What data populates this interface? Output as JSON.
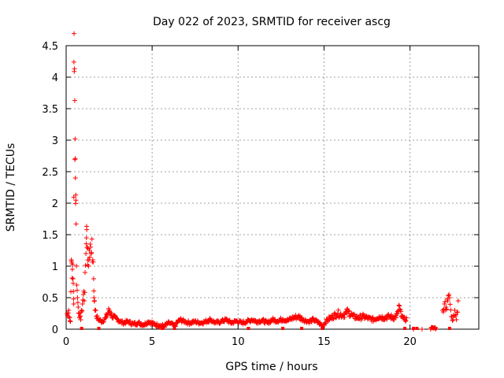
{
  "chart_data": {
    "type": "scatter",
    "title": "Day 022 of 2023, SRMTID for receiver ascg",
    "xlabel": "GPS time / hours",
    "ylabel": "SRMTID / TECUs",
    "xlim": [
      0,
      24
    ],
    "ylim": [
      0,
      4.5
    ],
    "x_ticks": [
      "0",
      "5",
      "10",
      "15",
      "20"
    ],
    "y_ticks": [
      "0",
      "0.5",
      "1",
      "1.5",
      "2",
      "2.5",
      "3",
      "3.5",
      "4",
      "4.5"
    ],
    "grid": true,
    "marker": "+",
    "color": "#ff0000",
    "series": [
      {
        "name": "SRMTID",
        "points": [
          [
            0.05,
            0.25
          ],
          [
            0.1,
            0.2
          ],
          [
            0.15,
            0.3
          ],
          [
            0.2,
            0.18
          ],
          [
            0.25,
            0.12
          ],
          [
            0.3,
            1.1
          ],
          [
            0.33,
            1.05
          ],
          [
            0.36,
            0.95
          ],
          [
            0.4,
            0.8
          ],
          [
            0.42,
            0.6
          ],
          [
            0.44,
            0.4
          ],
          [
            0.45,
            4.24
          ],
          [
            0.47,
            4.09
          ],
          [
            0.5,
            3.63
          ],
          [
            0.52,
            3.02
          ],
          [
            0.54,
            2.4
          ],
          [
            0.56,
            2.13
          ],
          [
            0.58,
            1.67
          ],
          [
            0.62,
            0.7
          ],
          [
            0.66,
            0.5
          ],
          [
            0.7,
            0.35
          ],
          [
            0.75,
            0.25
          ],
          [
            0.8,
            0.2
          ],
          [
            0.85,
            0.15
          ],
          [
            0.9,
            0.3
          ],
          [
            0.95,
            0.4
          ],
          [
            1.0,
            0.55
          ],
          [
            1.05,
            0.45
          ],
          [
            1.1,
            0.9
          ],
          [
            1.15,
            1.2
          ],
          [
            1.18,
            1.45
          ],
          [
            1.2,
            1.58
          ],
          [
            1.23,
            1.3
          ],
          [
            1.26,
            1.1
          ],
          [
            1.3,
            1.0
          ],
          [
            1.35,
            1.25
          ],
          [
            1.4,
            1.35
          ],
          [
            1.45,
            1.2
          ],
          [
            1.5,
            1.43
          ],
          [
            1.55,
            1.1
          ],
          [
            1.6,
            0.8
          ],
          [
            1.62,
            0.5
          ],
          [
            1.65,
            0.45
          ],
          [
            1.7,
            0.3
          ],
          [
            1.75,
            0.2
          ],
          [
            1.9,
            0.15
          ],
          [
            2.1,
            0.12
          ],
          [
            2.3,
            0.18
          ],
          [
            2.5,
            0.3
          ],
          [
            2.7,
            0.2
          ],
          [
            3.0,
            0.15
          ],
          [
            3.3,
            0.1
          ],
          [
            3.6,
            0.12
          ],
          [
            3.9,
            0.08
          ],
          [
            4.2,
            0.1
          ],
          [
            4.5,
            0.07
          ],
          [
            4.8,
            0.12
          ],
          [
            5.1,
            0.08
          ],
          [
            5.4,
            0.06
          ],
          [
            5.7,
            0.05
          ],
          [
            6.0,
            0.1
          ],
          [
            6.3,
            0.05
          ],
          [
            6.6,
            0.15
          ],
          [
            6.9,
            0.12
          ],
          [
            7.2,
            0.1
          ],
          [
            7.5,
            0.12
          ],
          [
            7.8,
            0.1
          ],
          [
            8.1,
            0.12
          ],
          [
            8.4,
            0.15
          ],
          [
            8.7,
            0.1
          ],
          [
            9.0,
            0.12
          ],
          [
            9.3,
            0.15
          ],
          [
            9.6,
            0.1
          ],
          [
            9.9,
            0.13
          ],
          [
            10.2,
            0.1
          ],
          [
            10.5,
            0.12
          ],
          [
            10.8,
            0.15
          ],
          [
            11.1,
            0.12
          ],
          [
            11.4,
            0.14
          ],
          [
            11.7,
            0.1
          ],
          [
            12.0,
            0.15
          ],
          [
            12.3,
            0.13
          ],
          [
            12.6,
            0.16
          ],
          [
            12.9,
            0.14
          ],
          [
            13.2,
            0.18
          ],
          [
            13.5,
            0.2
          ],
          [
            13.8,
            0.15
          ],
          [
            14.1,
            0.12
          ],
          [
            14.4,
            0.15
          ],
          [
            14.7,
            0.1
          ],
          [
            14.9,
            0.05
          ],
          [
            15.2,
            0.15
          ],
          [
            15.5,
            0.2
          ],
          [
            15.8,
            0.25
          ],
          [
            16.1,
            0.22
          ],
          [
            16.4,
            0.28
          ],
          [
            16.7,
            0.2
          ],
          [
            17.0,
            0.18
          ],
          [
            17.3,
            0.2
          ],
          [
            17.6,
            0.17
          ],
          [
            17.9,
            0.15
          ],
          [
            18.2,
            0.2
          ],
          [
            18.5,
            0.18
          ],
          [
            18.8,
            0.2
          ],
          [
            19.1,
            0.18
          ],
          [
            19.3,
            0.25
          ],
          [
            19.35,
            0.38
          ],
          [
            19.5,
            0.2
          ],
          [
            19.7,
            0.15
          ],
          [
            19.8,
            0.18
          ],
          [
            20.2,
            0.0
          ],
          [
            20.7,
            0.0
          ],
          [
            21.2,
            0.0
          ],
          [
            21.5,
            0.0
          ],
          [
            21.9,
            0.3
          ],
          [
            22.0,
            0.4
          ],
          [
            22.1,
            0.35
          ],
          [
            22.2,
            0.45
          ],
          [
            22.3,
            0.5
          ],
          [
            22.4,
            0.2
          ],
          [
            22.5,
            0.15
          ],
          [
            22.6,
            0.3
          ],
          [
            22.7,
            0.15
          ],
          [
            22.8,
            0.45
          ]
        ]
      }
    ],
    "zero_markers_x": [
      0.9,
      1.9,
      5.6,
      6.3,
      10.6,
      12.6,
      13.7,
      14.9,
      19.7,
      20.2,
      20.4,
      21.5,
      22.3
    ]
  }
}
